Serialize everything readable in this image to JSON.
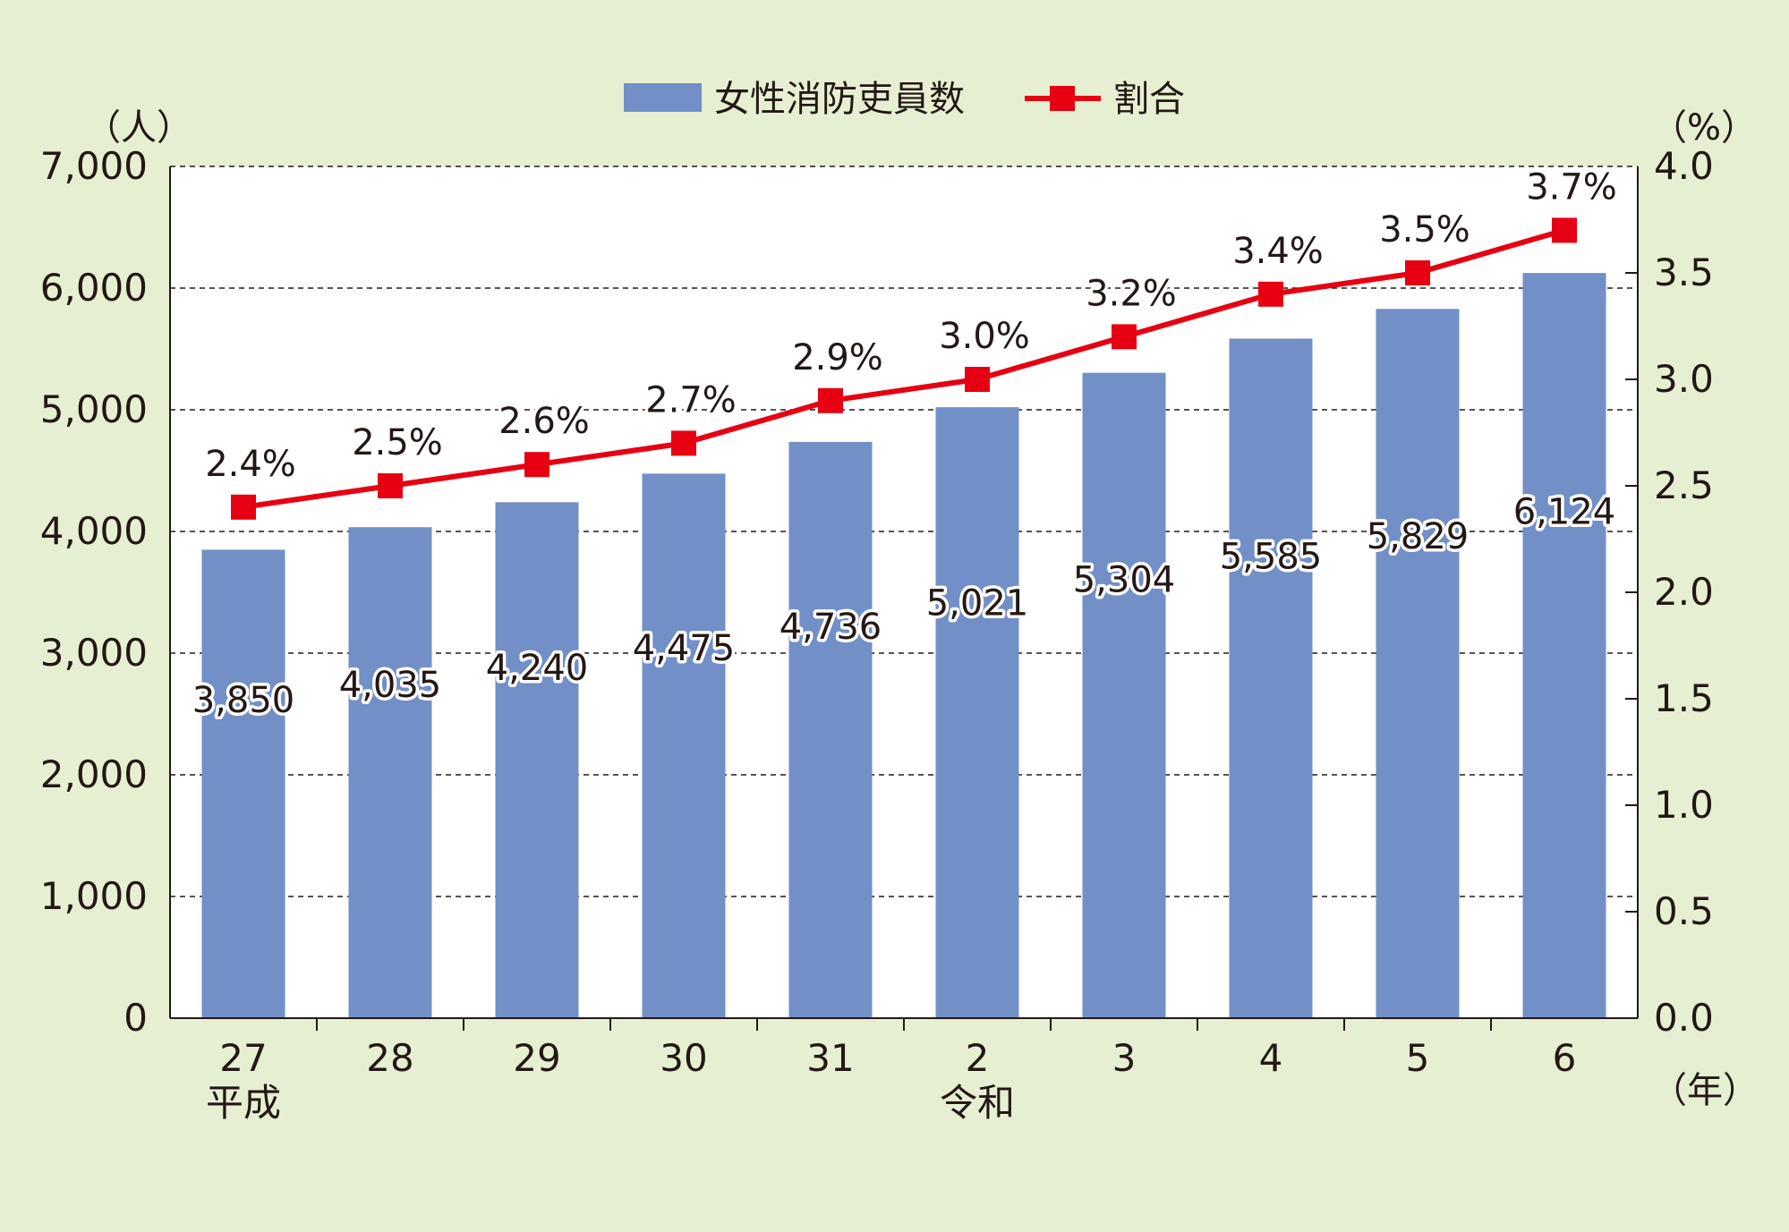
{
  "chart_data": {
    "type": "bar",
    "categories": [
      "27",
      "28",
      "29",
      "30",
      "31",
      "2",
      "3",
      "4",
      "5",
      "6"
    ],
    "era_labels": [
      {
        "index": 0,
        "text": "平成"
      },
      {
        "index": 5,
        "text": "令和"
      }
    ],
    "series": [
      {
        "name": "女性消防吏員数",
        "type": "bar",
        "axis": "left",
        "values": [
          3850,
          4035,
          4240,
          4475,
          4736,
          5021,
          5304,
          5585,
          5829,
          6124
        ],
        "labels": [
          "3,850",
          "4,035",
          "4,240",
          "4,475",
          "4,736",
          "5,021",
          "5,304",
          "5,585",
          "5,829",
          "6,124"
        ],
        "color": "#738fc7"
      },
      {
        "name": "割合",
        "type": "line",
        "axis": "right",
        "values": [
          2.4,
          2.5,
          2.6,
          2.7,
          2.9,
          3.0,
          3.2,
          3.4,
          3.5,
          3.7
        ],
        "labels": [
          "2.4%",
          "2.5%",
          "2.6%",
          "2.7%",
          "2.9%",
          "3.0%",
          "3.2%",
          "3.4%",
          "3.5%",
          "3.7%"
        ],
        "color": "#e60012"
      }
    ],
    "y_left": {
      "unit_label": "（人）",
      "ylim": [
        0,
        7000
      ],
      "ticks": [
        0,
        1000,
        2000,
        3000,
        4000,
        5000,
        6000,
        7000
      ],
      "tick_labels": [
        "0",
        "1,000",
        "2,000",
        "3,000",
        "4,000",
        "5,000",
        "6,000",
        "7,000"
      ]
    },
    "y_right": {
      "unit_label": "（%）",
      "ylim": [
        0,
        4.0
      ],
      "ticks": [
        0,
        0.5,
        1.0,
        1.5,
        2.0,
        2.5,
        3.0,
        3.5,
        4.0
      ],
      "tick_labels": [
        "0.0",
        "0.5",
        "1.0",
        "1.5",
        "2.0",
        "2.5",
        "3.0",
        "3.5",
        "4.0"
      ]
    },
    "x_unit_label": "（年）",
    "grid": "horizontal-dashed",
    "legend_position": "top-center"
  },
  "colors": {
    "background": "#e6efd2",
    "plot_background": "#ffffff",
    "bar": "#738fc7",
    "line": "#e60012"
  }
}
